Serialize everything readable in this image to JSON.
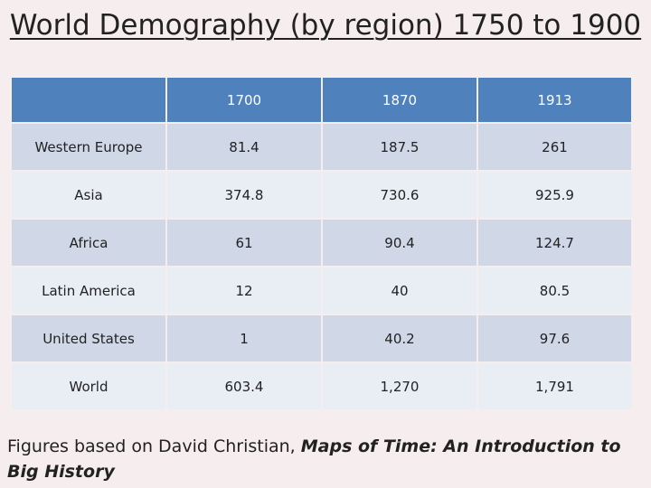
{
  "title": "World Demography (by region) 1750 to 1900",
  "table": {
    "headers": [
      "",
      "1700",
      "1870",
      "1913"
    ],
    "rows": [
      [
        "Western Europe",
        "81.4",
        "187.5",
        "261"
      ],
      [
        "Asia",
        "374.8",
        "730.6",
        "925.9"
      ],
      [
        "Africa",
        "61",
        "90.4",
        "124.7"
      ],
      [
        "Latin America",
        "12",
        "40",
        "80.5"
      ],
      [
        "United States",
        "1",
        "40.2",
        "97.6"
      ],
      [
        "World",
        "603.4",
        "1,270",
        "1,791"
      ]
    ]
  },
  "caption": {
    "prefix": "Figures based on David Christian, ",
    "book": "Maps of Time: An Introduction to Big History"
  },
  "colors": {
    "header": "#4f81bd",
    "row_dark": "#d0d8e8",
    "row_light": "#e9edf4",
    "background": "#f6eeee"
  }
}
